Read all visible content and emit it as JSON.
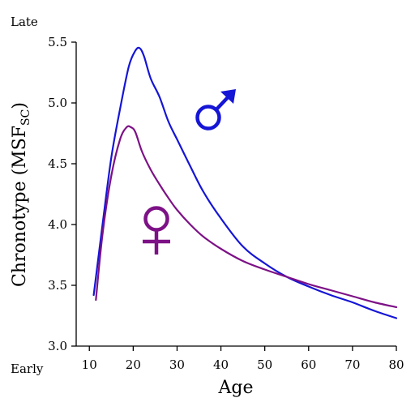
{
  "chart_data": {
    "type": "line",
    "xlabel": "Age",
    "ylabel": "Chronotype (MSF",
    "ylabel_sub": "SC",
    "ylabel_close": ")",
    "y_top_label": "Late",
    "y_bottom_label": "Early",
    "xlim": [
      7,
      80
    ],
    "ylim": [
      3.0,
      5.5
    ],
    "xticks": [
      10,
      20,
      30,
      40,
      50,
      60,
      70,
      80
    ],
    "yticks": [
      "3.0",
      "3.5",
      "4.0",
      "4.5",
      "5.0",
      "5.5"
    ],
    "series": [
      {
        "symbol": "male-symbol",
        "color": "#1515d6",
        "x": [
          11,
          13,
          15,
          17,
          19,
          20.5,
          21.5,
          22.5,
          24,
          26,
          28,
          30,
          33,
          36,
          40,
          45,
          50,
          55,
          60,
          65,
          70,
          75,
          80
        ],
        "y": [
          3.42,
          4.0,
          4.55,
          4.95,
          5.3,
          5.43,
          5.45,
          5.38,
          5.2,
          5.05,
          4.85,
          4.7,
          4.48,
          4.27,
          4.05,
          3.82,
          3.68,
          3.57,
          3.49,
          3.42,
          3.36,
          3.29,
          3.23
        ]
      },
      {
        "symbol": "female-symbol",
        "color": "#7d1186",
        "x": [
          11.5,
          13,
          15,
          17,
          18.5,
          19.5,
          20.5,
          22,
          24,
          26,
          28,
          30,
          33,
          36,
          40,
          45,
          50,
          55,
          60,
          65,
          70,
          75,
          80
        ],
        "y": [
          3.38,
          3.92,
          4.4,
          4.7,
          4.8,
          4.8,
          4.76,
          4.6,
          4.45,
          4.33,
          4.22,
          4.12,
          4.0,
          3.9,
          3.8,
          3.7,
          3.63,
          3.57,
          3.51,
          3.46,
          3.41,
          3.36,
          3.32
        ]
      }
    ]
  }
}
